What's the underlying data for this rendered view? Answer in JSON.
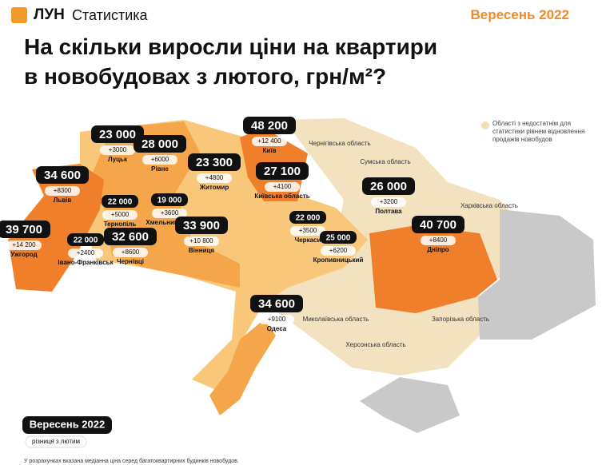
{
  "header": {
    "brand": "ЛУН",
    "product": "Статистика",
    "period": "Вересень 2022"
  },
  "title_lines": [
    "На скільки виросли ціни на квартири",
    "в новобудовах з лютого, грн/м²?"
  ],
  "legend_note": "Області з недостатнім для статистики рівнем відновлення продажів новобудов",
  "regions": [
    {
      "name": "Луцьк",
      "price": "23 000",
      "change": "+3000"
    },
    {
      "name": "Рівне",
      "price": "28 000",
      "change": "+6000"
    },
    {
      "name": "Київ",
      "price": "48 200",
      "change": "+12 400"
    },
    {
      "name": "Житомир",
      "price": "23 300",
      "change": "+4800"
    },
    {
      "name": "Київська область",
      "price": "27 100",
      "change": "+4100"
    },
    {
      "name": "Львів",
      "price": "34 600",
      "change": "+8300"
    },
    {
      "name": "Тернопіль",
      "price": "22 000",
      "change": "+5000"
    },
    {
      "name": "Хмельницький",
      "price": "19 000",
      "change": "+3600"
    },
    {
      "name": "Ужгород",
      "price": "39 700",
      "change": "+14 200"
    },
    {
      "name": "Івано-Франківськ",
      "price": "22 000",
      "change": "+2400"
    },
    {
      "name": "Чернівці",
      "price": "32 600",
      "change": "+8600"
    },
    {
      "name": "Вінниця",
      "price": "33 900",
      "change": "+10 800"
    },
    {
      "name": "Черкаси",
      "price": "22 000",
      "change": "+3500"
    },
    {
      "name": "Кропивницький",
      "price": "25 000",
      "change": "+6200"
    },
    {
      "name": "Полтава",
      "price": "26 000",
      "change": "+3200"
    },
    {
      "name": "Дніпро",
      "price": "40 700",
      "change": "+8400"
    },
    {
      "name": "Одеса",
      "price": "34 600",
      "change": "+9100"
    }
  ],
  "no_data_regions": [
    "Чернігівська область",
    "Сумська область",
    "Харківська область",
    "Запорізька область",
    "Миколаївська область",
    "Херсонська область"
  ],
  "key": {
    "price": "Вересень 2022",
    "change": "різниця з лютим"
  },
  "footnote": "У розрахунках вказана медіанна ціна серед багатоквартирних будинків новобудов."
}
